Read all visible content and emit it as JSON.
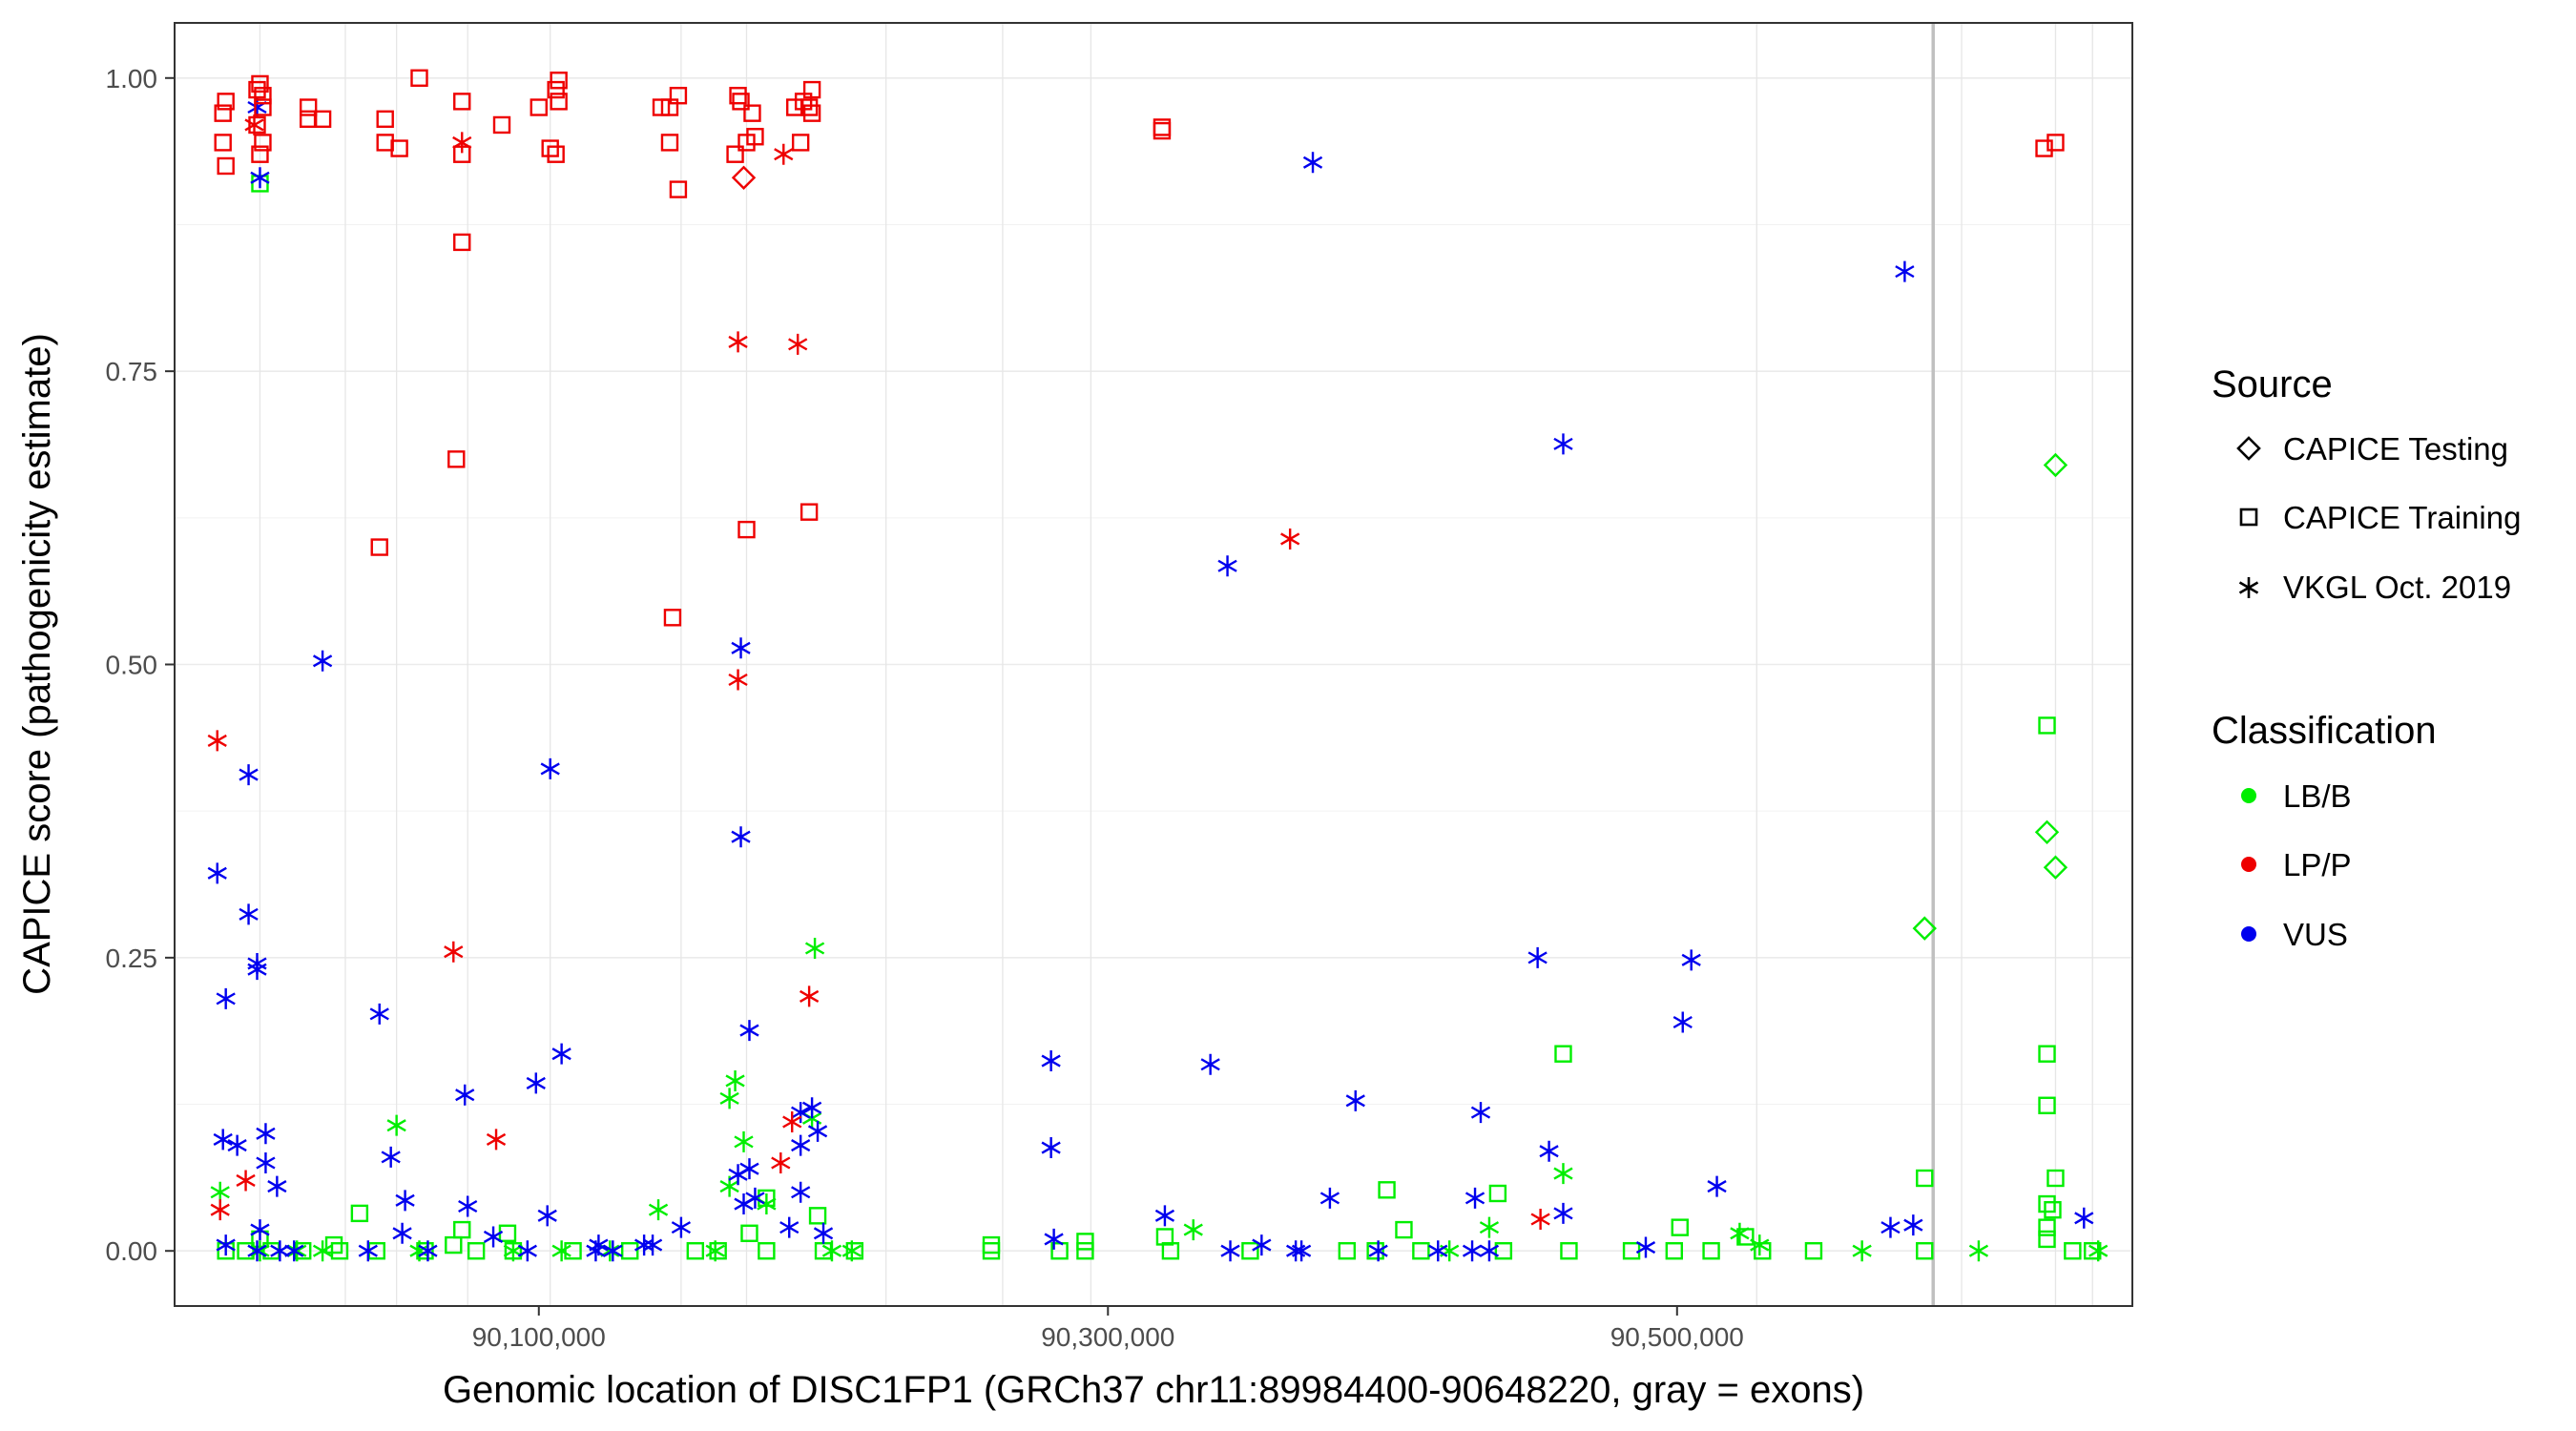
{
  "chart_data": {
    "type": "scatter",
    "xlabel": "Genomic location of DISC1FP1 (GRCh37 chr11:89984400-90648220, gray = exons)",
    "ylabel": "CAPICE score (pathogenicity estimate)",
    "xlim": [
      89972000,
      90660000
    ],
    "ylim": [
      -0.047,
      1.047
    ],
    "x_ticks": [
      90100000,
      90300000,
      90500000
    ],
    "x_tick_labels": [
      "90,100,000",
      "90,300,000",
      "90,500,000"
    ],
    "y_ticks": [
      0,
      0.25,
      0.5,
      0.75,
      1.0
    ],
    "y_tick_labels": [
      "0.00",
      "0.25",
      "0.50",
      "0.75",
      "1.00"
    ],
    "grid": true,
    "exons": [
      90002000,
      90032000,
      90050000,
      90075000,
      90104000,
      90150000,
      90173000,
      90222000,
      90263000,
      90294000,
      90528000,
      90590000,
      90600000,
      90633000,
      90646000
    ],
    "legend_position": "right",
    "legend": {
      "source_title": "Source",
      "source_entries": [
        {
          "label": "CAPICE Testing",
          "shape": "diamond"
        },
        {
          "label": "CAPICE Training",
          "shape": "square"
        },
        {
          "label": "VKGL Oct. 2019",
          "shape": "asterisk"
        }
      ],
      "class_title": "Classification",
      "class_entries": [
        {
          "label": "LB/B",
          "color": "#00ee00"
        },
        {
          "label": "LP/P",
          "color": "#ee0000"
        },
        {
          "label": "VUS",
          "color": "#0000ee"
        }
      ]
    },
    "colors": {
      "LB/B": "#00ee00",
      "LP/P": "#ee0000",
      "VUS": "#0000ee"
    },
    "series": [
      {
        "name": "LP/P - CAPICE Training",
        "class": "LP/P",
        "shape": "square",
        "points": [
          [
            89989000,
            0.97
          ],
          [
            89990000,
            0.98
          ],
          [
            89989000,
            0.945
          ],
          [
            89990000,
            0.925
          ],
          [
            90001000,
            0.99
          ],
          [
            90002000,
            0.995
          ],
          [
            90003000,
            0.985
          ],
          [
            90001000,
            0.96
          ],
          [
            90003000,
            0.945
          ],
          [
            90002000,
            0.935
          ],
          [
            90003000,
            0.975
          ],
          [
            90019000,
            0.975
          ],
          [
            90019000,
            0.965
          ],
          [
            90024000,
            0.965
          ],
          [
            90046000,
            0.965
          ],
          [
            90046000,
            0.945
          ],
          [
            90051000,
            0.94
          ],
          [
            90058000,
            1.0
          ],
          [
            90073000,
            0.98
          ],
          [
            90073000,
            0.935
          ],
          [
            90087000,
            0.96
          ],
          [
            90100000,
            0.975
          ],
          [
            90104000,
            0.94
          ],
          [
            90106000,
            0.99
          ],
          [
            90107000,
            0.98
          ],
          [
            90106000,
            0.935
          ],
          [
            90107000,
            0.998
          ],
          [
            90143000,
            0.975
          ],
          [
            90146000,
            0.975
          ],
          [
            90149000,
            0.985
          ],
          [
            90146000,
            0.945
          ],
          [
            90149000,
            0.905
          ],
          [
            90170000,
            0.985
          ],
          [
            90171000,
            0.98
          ],
          [
            90175000,
            0.97
          ],
          [
            90176000,
            0.95
          ],
          [
            90169000,
            0.935
          ],
          [
            90173000,
            0.945
          ],
          [
            90190000,
            0.975
          ],
          [
            90193000,
            0.98
          ],
          [
            90195000,
            0.975
          ],
          [
            90196000,
            0.99
          ],
          [
            90196000,
            0.97
          ],
          [
            90192000,
            0.945
          ],
          [
            90073000,
            0.86
          ],
          [
            90071000,
            0.675
          ],
          [
            90044000,
            0.6
          ],
          [
            90147000,
            0.54
          ],
          [
            90173000,
            0.615
          ],
          [
            90195000,
            0.63
          ],
          [
            90319000,
            0.955
          ],
          [
            90319000,
            0.958
          ],
          [
            90629000,
            0.94
          ],
          [
            90633000,
            0.945
          ]
        ]
      },
      {
        "name": "LP/P - VKGL Oct. 2019",
        "class": "LP/P",
        "shape": "asterisk",
        "points": [
          [
            90000000,
            0.96
          ],
          [
            90073000,
            0.945
          ],
          [
            90186000,
            0.935
          ],
          [
            90170000,
            0.775
          ],
          [
            90191000,
            0.773
          ],
          [
            90170000,
            0.487
          ],
          [
            89987000,
            0.435
          ],
          [
            90070000,
            0.255
          ],
          [
            90195000,
            0.217
          ],
          [
            90085000,
            0.095
          ],
          [
            90189000,
            0.11
          ],
          [
            90185000,
            0.075
          ],
          [
            89997000,
            0.06
          ],
          [
            89988000,
            0.035
          ],
          [
            90364000,
            0.607
          ],
          [
            90452000,
            0.027
          ]
        ]
      },
      {
        "name": "LP/P - CAPICE Testing",
        "class": "LP/P",
        "shape": "diamond",
        "points": [
          [
            90172000,
            0.915
          ]
        ]
      },
      {
        "name": "VUS - VKGL Oct. 2019",
        "class": "VUS",
        "shape": "asterisk",
        "points": [
          [
            90002000,
            0.915
          ],
          [
            90001000,
            0.975
          ],
          [
            90372000,
            0.928
          ],
          [
            90580000,
            0.835
          ],
          [
            90460000,
            0.688
          ],
          [
            90342000,
            0.584
          ],
          [
            90171000,
            0.514
          ],
          [
            90024000,
            0.503
          ],
          [
            90104000,
            0.411
          ],
          [
            89998000,
            0.406
          ],
          [
            90171000,
            0.353
          ],
          [
            89987000,
            0.322
          ],
          [
            89998000,
            0.287
          ],
          [
            90451000,
            0.25
          ],
          [
            90505000,
            0.248
          ],
          [
            90001000,
            0.245
          ],
          [
            90001000,
            0.24
          ],
          [
            89990000,
            0.215
          ],
          [
            90044000,
            0.202
          ],
          [
            90502000,
            0.195
          ],
          [
            90174000,
            0.188
          ],
          [
            90108000,
            0.168
          ],
          [
            90280000,
            0.162
          ],
          [
            90336000,
            0.159
          ],
          [
            90099000,
            0.143
          ],
          [
            90074000,
            0.133
          ],
          [
            90387000,
            0.128
          ],
          [
            90431000,
            0.118
          ],
          [
            90192000,
            0.118
          ],
          [
            90196000,
            0.122
          ],
          [
            90198000,
            0.102
          ],
          [
            90004000,
            0.1
          ],
          [
            89989000,
            0.095
          ],
          [
            89994000,
            0.09
          ],
          [
            90048000,
            0.08
          ],
          [
            90192000,
            0.09
          ],
          [
            90280000,
            0.088
          ],
          [
            90455000,
            0.085
          ],
          [
            90004000,
            0.075
          ],
          [
            90174000,
            0.07
          ],
          [
            90170000,
            0.065
          ],
          [
            90008000,
            0.055
          ],
          [
            90514000,
            0.055
          ],
          [
            90378000,
            0.045
          ],
          [
            90429000,
            0.045
          ],
          [
            90053000,
            0.043
          ],
          [
            90075000,
            0.038
          ],
          [
            90192000,
            0.05
          ],
          [
            90103000,
            0.03
          ],
          [
            90320000,
            0.03
          ],
          [
            90460000,
            0.032
          ],
          [
            90583000,
            0.022
          ],
          [
            90575000,
            0.02
          ],
          [
            90643000,
            0.028
          ],
          [
            90002000,
            0.018
          ],
          [
            90172000,
            0.04
          ],
          [
            90176000,
            0.045
          ],
          [
            90052000,
            0.015
          ],
          [
            90084000,
            0.012
          ],
          [
            90121000,
            0.005
          ],
          [
            90150000,
            0.02
          ],
          [
            90281000,
            0.01
          ],
          [
            90354000,
            0.005
          ],
          [
            90366000,
            0.0
          ],
          [
            90343000,
            0.0
          ],
          [
            90368000,
            0.0
          ],
          [
            90395000,
            0.0
          ],
          [
            90416000,
            0.0
          ],
          [
            90428000,
            0.0
          ],
          [
            90434000,
            0.0
          ],
          [
            90489000,
            0.003
          ],
          [
            90014000,
            0.0
          ],
          [
            90009000,
            0.0
          ],
          [
            90040000,
            0.0
          ],
          [
            90061000,
            0.0
          ],
          [
            90096000,
            0.0
          ],
          [
            90126000,
            0.0
          ],
          [
            90137000,
            0.005
          ],
          [
            90188000,
            0.02
          ],
          [
            90200000,
            0.015
          ],
          [
            90001000,
            0.0
          ],
          [
            89990000,
            0.005
          ],
          [
            90120000,
            0.0
          ],
          [
            90140000,
            0.005
          ]
        ]
      },
      {
        "name": "LB/B - VKGL Oct. 2019",
        "class": "LB/B",
        "shape": "asterisk",
        "points": [
          [
            90197000,
            0.258
          ],
          [
            90169000,
            0.145
          ],
          [
            90167000,
            0.13
          ],
          [
            90050000,
            0.107
          ],
          [
            90172000,
            0.093
          ],
          [
            90196000,
            0.113
          ],
          [
            90460000,
            0.066
          ],
          [
            89988000,
            0.05
          ],
          [
            90167000,
            0.055
          ],
          [
            90142000,
            0.035
          ],
          [
            90180000,
            0.04
          ],
          [
            90330000,
            0.018
          ],
          [
            90434000,
            0.02
          ],
          [
            90522000,
            0.015
          ],
          [
            90529000,
            0.005
          ],
          [
            90565000,
            0.0
          ],
          [
            90606000,
            0.0
          ],
          [
            90648000,
            0.0
          ],
          [
            90015000,
            0.0
          ],
          [
            90024000,
            0.0
          ],
          [
            90058000,
            0.0
          ],
          [
            90091000,
            0.0
          ],
          [
            90108000,
            0.0
          ],
          [
            90125000,
            0.0
          ],
          [
            90162000,
            0.0
          ],
          [
            90203000,
            0.0
          ],
          [
            90210000,
            0.0
          ],
          [
            90002000,
            0.0
          ],
          [
            90420000,
            0.0
          ]
        ]
      },
      {
        "name": "LB/B - CAPICE Training",
        "class": "LB/B",
        "shape": "square",
        "points": [
          [
            90002000,
            0.91
          ],
          [
            90630000,
            0.448
          ],
          [
            90630000,
            0.168
          ],
          [
            90460000,
            0.168
          ],
          [
            90630000,
            0.124
          ],
          [
            90587000,
            0.062
          ],
          [
            90633000,
            0.062
          ],
          [
            90398000,
            0.052
          ],
          [
            90437000,
            0.049
          ],
          [
            90630000,
            0.04
          ],
          [
            90632000,
            0.035
          ],
          [
            90037000,
            0.032
          ],
          [
            90198000,
            0.03
          ],
          [
            90180000,
            0.045
          ],
          [
            90073000,
            0.018
          ],
          [
            90501000,
            0.02
          ],
          [
            90404000,
            0.018
          ],
          [
            90524000,
            0.012
          ],
          [
            90630000,
            0.02
          ],
          [
            90630000,
            0.01
          ],
          [
            90174000,
            0.015
          ],
          [
            90320000,
            0.012
          ],
          [
            90089000,
            0.015
          ],
          [
            90002000,
            0.01
          ],
          [
            89990000,
            0.0
          ],
          [
            89997000,
            0.0
          ],
          [
            90006000,
            0.0
          ],
          [
            90017000,
            0.0
          ],
          [
            90030000,
            0.0
          ],
          [
            90043000,
            0.0
          ],
          [
            90060000,
            0.0
          ],
          [
            90078000,
            0.0
          ],
          [
            90091000,
            0.0
          ],
          [
            90112000,
            0.0
          ],
          [
            90132000,
            0.0
          ],
          [
            90155000,
            0.0
          ],
          [
            90163000,
            0.0
          ],
          [
            90180000,
            0.0
          ],
          [
            90200000,
            0.0
          ],
          [
            90211000,
            0.0
          ],
          [
            90259000,
            0.0
          ],
          [
            90283000,
            0.0
          ],
          [
            90292000,
            0.0
          ],
          [
            90322000,
            0.0
          ],
          [
            90350000,
            0.0
          ],
          [
            90384000,
            0.0
          ],
          [
            90394000,
            0.0
          ],
          [
            90410000,
            0.0
          ],
          [
            90439000,
            0.0
          ],
          [
            90462000,
            0.0
          ],
          [
            90484000,
            0.0
          ],
          [
            90499000,
            0.0
          ],
          [
            90512000,
            0.0
          ],
          [
            90530000,
            0.0
          ],
          [
            90548000,
            0.0
          ],
          [
            90587000,
            0.0
          ],
          [
            90639000,
            0.0
          ],
          [
            90646000,
            0.0
          ],
          [
            90259000,
            0.005
          ],
          [
            90292000,
            0.008
          ],
          [
            90028000,
            0.005
          ],
          [
            90070000,
            0.005
          ]
        ]
      },
      {
        "name": "LB/B - CAPICE Testing",
        "class": "LB/B",
        "shape": "diamond",
        "points": [
          [
            90633000,
            0.67
          ],
          [
            90630000,
            0.357
          ],
          [
            90633000,
            0.327
          ],
          [
            90587000,
            0.275
          ]
        ]
      }
    ]
  }
}
